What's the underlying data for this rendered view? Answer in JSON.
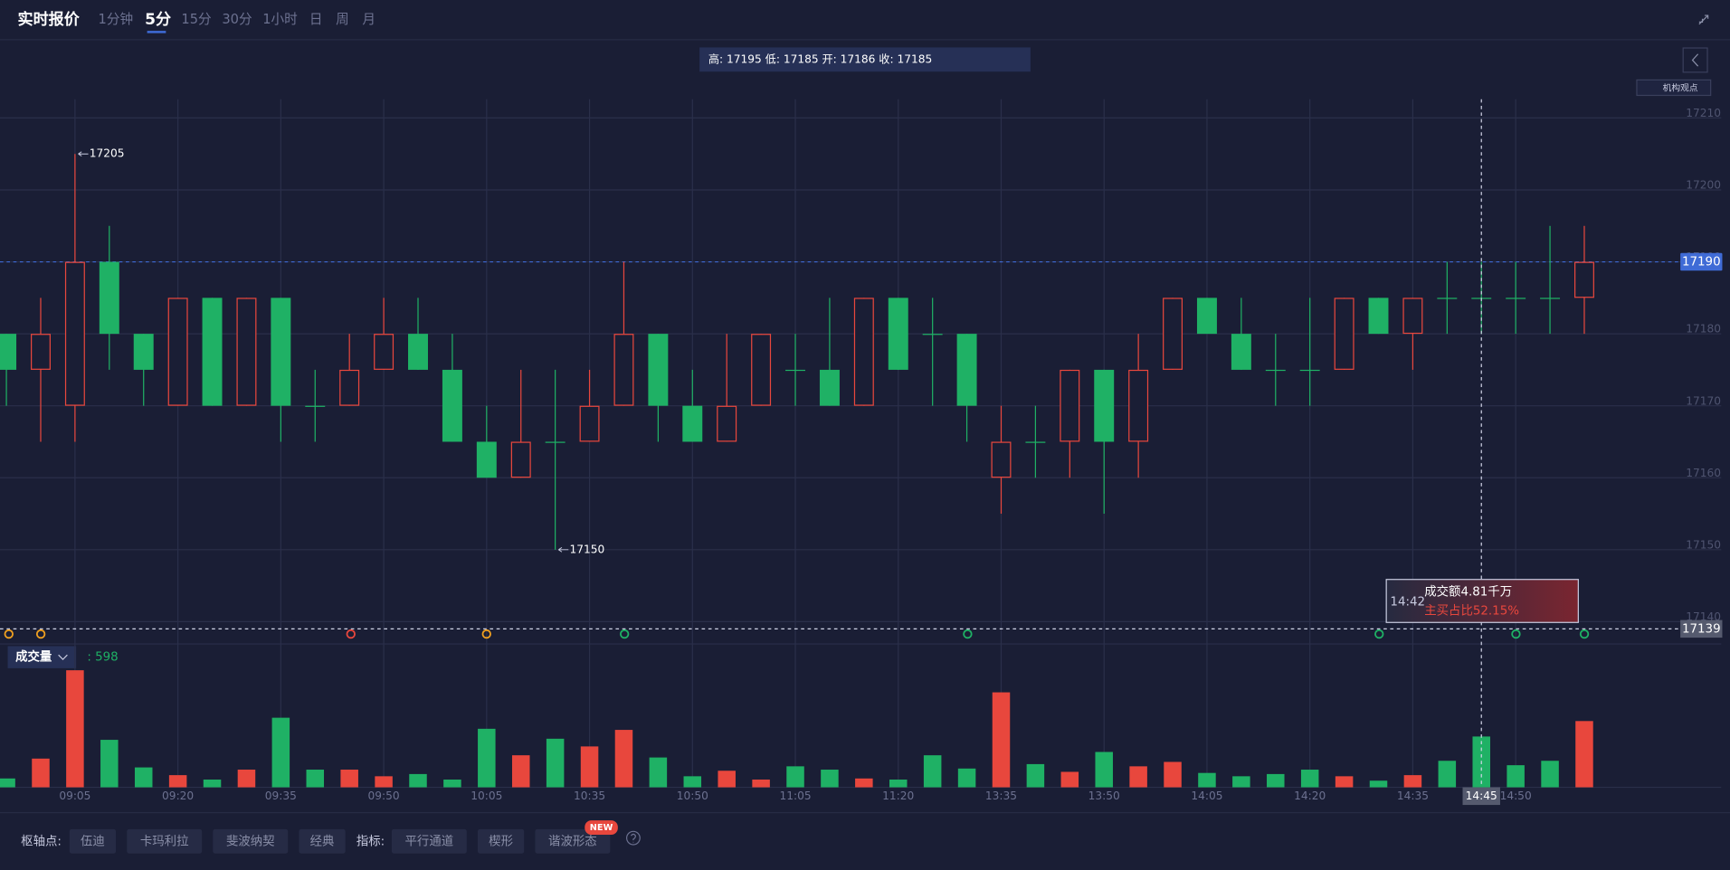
{
  "header": {
    "title": "实时报价",
    "tabs": [
      "1分钟",
      "5分",
      "15分",
      "30分",
      "1小时",
      "日",
      "周",
      "月"
    ]
  },
  "quote_bar": "高: 17195 低: 17185 开: 17186 收: 17185",
  "side_button": "机构观点",
  "chart_data": {
    "type": "candlestick",
    "categories": [
      null,
      null,
      "09:05",
      null,
      null,
      "09:20",
      null,
      null,
      "09:35",
      null,
      null,
      "09:50",
      null,
      null,
      "10:05",
      null,
      null,
      "10:35",
      null,
      null,
      "10:50",
      null,
      null,
      "11:05",
      null,
      null,
      "11:20",
      null,
      null,
      "13:35",
      null,
      null,
      "13:50",
      null,
      null,
      "14:05",
      null,
      null,
      "14:20",
      null,
      null,
      "14:35",
      null,
      "14:45",
      "14:50",
      null,
      null
    ],
    "open": [
      17180,
      17175,
      17170,
      17190,
      17180,
      17170,
      17185,
      17170,
      17185,
      17170,
      17170,
      17175,
      17180,
      17175,
      17165,
      17160,
      17165,
      17165,
      17170,
      17180,
      17170,
      17165,
      17170,
      17175,
      17175,
      17170,
      17185,
      17180,
      17180,
      17160,
      17165,
      17165,
      17175,
      17165,
      17175,
      17185,
      17180,
      17175,
      17175,
      17175,
      17185,
      17180,
      17185,
      17185,
      17185,
      17185,
      17185
    ],
    "high": [
      17180,
      17185,
      17205,
      17195,
      17180,
      17185,
      17185,
      17185,
      17185,
      17175,
      17180,
      17185,
      17185,
      17180,
      17170,
      17175,
      17175,
      17175,
      17190,
      17180,
      17175,
      17180,
      17180,
      17180,
      17185,
      17185,
      17185,
      17185,
      17180,
      17170,
      17170,
      17175,
      17175,
      17180,
      17185,
      17185,
      17185,
      17180,
      17185,
      17185,
      17185,
      17185,
      17190,
      17190,
      17190,
      17195,
      17195
    ],
    "low": [
      17170,
      17165,
      17165,
      17175,
      17170,
      17170,
      17170,
      17170,
      17165,
      17165,
      17170,
      17175,
      17175,
      17165,
      17160,
      17160,
      17150,
      17165,
      17170,
      17165,
      17165,
      17165,
      17170,
      17170,
      17170,
      17170,
      17175,
      17170,
      17165,
      17155,
      17160,
      17160,
      17155,
      17160,
      17175,
      17180,
      17175,
      17170,
      17170,
      17175,
      17180,
      17175,
      17180,
      17180,
      17180,
      17180,
      17180
    ],
    "close": [
      17175,
      17180,
      17190,
      17180,
      17175,
      17185,
      17170,
      17185,
      17170,
      17170,
      17175,
      17180,
      17175,
      17165,
      17160,
      17165,
      17165,
      17170,
      17180,
      17170,
      17165,
      17170,
      17180,
      17175,
      17170,
      17185,
      17175,
      17180,
      17170,
      17165,
      17165,
      17175,
      17165,
      17175,
      17185,
      17180,
      17175,
      17175,
      17175,
      17185,
      17180,
      17185,
      17185,
      17185,
      17185,
      17185,
      17190
    ],
    "up_color": "#e8473d",
    "down_color": "#1fb165",
    "ylim": [
      17136.9,
      17212.6
    ],
    "yticks": [
      17140,
      17150,
      17160,
      17170,
      17180,
      17190,
      17200,
      17210
    ],
    "grid": true,
    "high_marker": 17205,
    "low_marker": 17150,
    "current_price": 17190,
    "current_price_color": "#3f6bd6",
    "crosshair": {
      "category": "14:45",
      "price": 17139
    },
    "tooltip": {
      "time": "14:42",
      "amount": "成交额4.81千万",
      "buy_ratio": "主买占比52.15%"
    },
    "volume": {
      "label": "成交量",
      "current_label": ": 598",
      "values": [
        104,
        338,
        1378,
        559,
        234,
        143,
        91,
        208,
        819,
        208,
        208,
        130,
        156,
        91,
        689,
        377,
        572,
        481,
        676,
        351,
        130,
        195,
        91,
        247,
        208,
        104,
        91,
        377,
        221,
        1118,
        273,
        182,
        416,
        247,
        299,
        169,
        130,
        156,
        208,
        130,
        78,
        143,
        312,
        598,
        260,
        312,
        780
      ],
      "ylim": [
        0,
        1480
      ]
    }
  },
  "toolbar": {
    "pivot_label": "枢轴点:",
    "pivots": [
      "伍迪",
      "卡玛利拉",
      "斐波纳契",
      "经典"
    ],
    "indicator_label": "指标:",
    "indicators": [
      "平行通道",
      "楔形",
      "谐波形态"
    ],
    "badge": "NEW"
  }
}
